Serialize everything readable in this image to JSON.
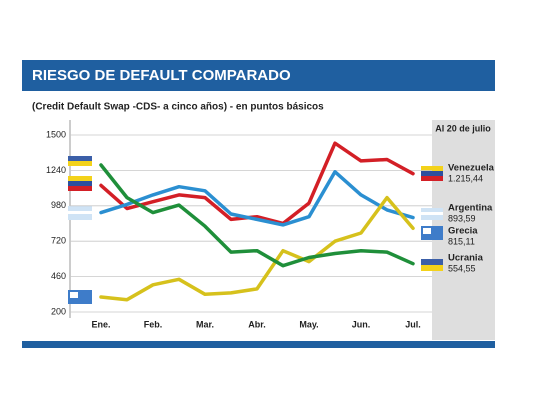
{
  "chart_data": {
    "type": "line",
    "title": "RIESGO DE DEFAULT COMPARADO",
    "subtitle": "(Credit Default Swap -CDS- a cinco años) - en puntos básicos",
    "annotation": "Al 20 de julio",
    "categories": [
      "Ene.",
      null,
      "Feb.",
      null,
      "Mar.",
      null,
      "Abr.",
      null,
      "May.",
      null,
      "Jun.",
      null,
      "Jul."
    ],
    "ylim": [
      200,
      1500
    ],
    "yticks": [
      200,
      460,
      720,
      980,
      1240,
      1500
    ],
    "grid": true,
    "series": [
      {
        "name": "Venezuela",
        "color": "#d31f26",
        "values": [
          1130,
          960,
          1010,
          1060,
          1040,
          880,
          900,
          850,
          1000,
          1440,
          1310,
          1320,
          1215.44
        ],
        "value_labels": [
          null,
          null,
          null,
          null,
          null,
          null,
          null,
          null,
          null,
          null,
          null,
          null,
          "1.215,44"
        ]
      },
      {
        "name": "Argentina",
        "color": "#2b8fd1",
        "values": [
          930,
          990,
          1060,
          1120,
          1090,
          920,
          880,
          840,
          900,
          1230,
          1060,
          950,
          893.59
        ],
        "value_labels": [
          null,
          null,
          null,
          null,
          null,
          null,
          null,
          null,
          null,
          null,
          null,
          null,
          "893,59"
        ]
      },
      {
        "name": "Grecia",
        "color": "#d6c11c",
        "values": [
          310,
          290,
          400,
          440,
          330,
          340,
          370,
          650,
          570,
          720,
          780,
          1040,
          815.11
        ],
        "value_labels": [
          null,
          null,
          null,
          null,
          null,
          null,
          null,
          null,
          null,
          null,
          null,
          null,
          "815,11"
        ]
      },
      {
        "name": "Ucrania",
        "color": "#1f8f3a",
        "values": [
          1280,
          1040,
          930,
          985,
          830,
          640,
          650,
          540,
          600,
          630,
          650,
          640,
          554.55
        ],
        "value_labels": [
          null,
          null,
          null,
          null,
          null,
          null,
          null,
          null,
          null,
          null,
          null,
          null,
          "554,55"
        ]
      }
    ]
  }
}
